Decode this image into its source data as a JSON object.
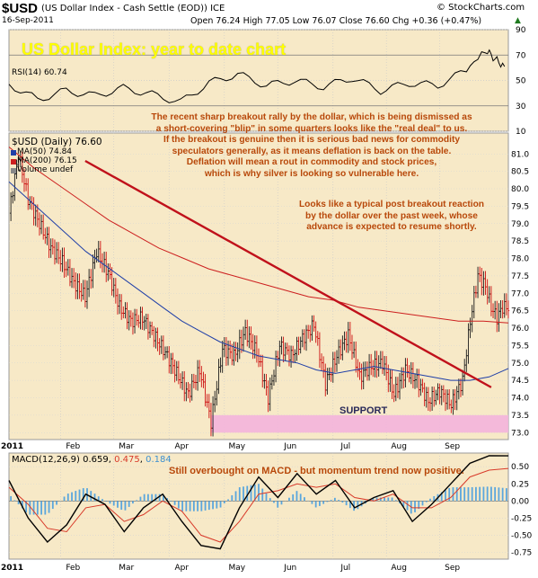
{
  "header": {
    "symbol": "$USD",
    "description": "(US Dollar Index - Cash Settle (EOD)) ICE",
    "site": "© StockCharts.com",
    "date": "16-Sep-2011",
    "quote": "Open 76.24 High 77.05 Low 76.07 Close 76.60 Chg +0.36 (+0.47%)",
    "up_arrow": "▲"
  },
  "title_banner": "US Dollar Index: year to date chart",
  "rsi_panel": {
    "label": "RSI(14) 60.74",
    "ticks": [
      "90",
      "70",
      "50",
      "30",
      "10"
    ]
  },
  "price_panel": {
    "label": "$USD (Daily) 76.60",
    "legend": [
      {
        "text": "MA(50) 74.84",
        "color": "#1f3fa8"
      },
      {
        "text": "MA(200) 76.15",
        "color": "#cc1f1f"
      },
      {
        "text": "Volume undef",
        "color": "#444444"
      }
    ],
    "support_label": "SUPPORT",
    "annotation_1": [
      "The recent sharp breakout rally by the dollar, which is being dismissed as",
      "a short-covering \"blip\" in some quarters looks like the \"real deal\" to us.",
      "If the breakout is genuine then it is serious bad news for commodity",
      "speculators generally, as it means deflation is back on the table.",
      "Deflation will mean a rout in commodity and stock prices,",
      "which is why silver is looking so vulnerable here."
    ],
    "annotation_2": [
      "Looks like a typical post breakout reaction",
      "by the dollar over the past week, whose",
      "advance is expected to resume shortly."
    ],
    "ticks": [
      "81.0",
      "80.5",
      "80.0",
      "79.5",
      "79.0",
      "78.5",
      "78.0",
      "77.5",
      "77.0",
      "76.5",
      "76.0",
      "75.5",
      "75.0",
      "74.5",
      "74.0",
      "73.5",
      "73.0"
    ]
  },
  "macd_panel": {
    "label_prefix": "MACD(12,26,9) 0.659, ",
    "label_signal": "0.475",
    "label_sep": ", ",
    "label_hist": "0.184",
    "note": "Still overbought on MACD - but momentum trend now positive.",
    "ticks": [
      "0.50",
      "0.25",
      "0.00",
      "-0.25",
      "-0.50",
      "-0.75"
    ]
  },
  "x_axis": {
    "year": "2011",
    "months": [
      "Feb",
      "Mar",
      "Apr",
      "May",
      "Jun",
      "Jul",
      "Aug",
      "Sep"
    ]
  },
  "colors": {
    "panel_bg": "#f7e9c7",
    "price_up": "#1a1a1a",
    "price_down": "#cc1010",
    "ma50": "#1f3fa8",
    "ma200": "#cc1f1f",
    "trendline": "#c0111b",
    "support_band": "#f3b4dc",
    "macd": "#000000",
    "signal": "#d83a2a",
    "histogram": "#5aa6dd",
    "annotation": "#b8480a",
    "banner": "#ffff00"
  },
  "chart_data": [
    {
      "type": "line",
      "title": "RSI(14) 60.74",
      "ylim": [
        10,
        90
      ],
      "series": [
        {
          "name": "RSI(14)",
          "x_days": [
            0,
            15,
            30,
            45,
            60,
            75,
            90,
            105,
            120,
            135,
            150,
            165,
            180,
            195,
            210,
            225,
            240,
            250,
            255,
            260
          ],
          "values": [
            47,
            35,
            42,
            38,
            44,
            39,
            33,
            48,
            55,
            46,
            50,
            45,
            52,
            42,
            48,
            46,
            58,
            74,
            67,
            61
          ]
        }
      ]
    },
    {
      "type": "line",
      "title": "$USD (Daily) 76.60",
      "ylim": [
        72.8,
        81.6
      ],
      "xlabel": "",
      "ylabel": "",
      "series": [
        {
          "name": "$USD close",
          "x_days": [
            0,
            5,
            10,
            16,
            22,
            28,
            34,
            40,
            46,
            52,
            58,
            64,
            70,
            76,
            82,
            88,
            94,
            100,
            106,
            112,
            118,
            124,
            130,
            136,
            142,
            148,
            154,
            160,
            166,
            172,
            178,
            184,
            190,
            196,
            202,
            208,
            214,
            220,
            226,
            232,
            238,
            242,
            246,
            250,
            253,
            256,
            259,
            262
          ],
          "values": [
            79.3,
            81.0,
            79.7,
            79.0,
            78.3,
            77.9,
            77.3,
            76.9,
            78.2,
            77.6,
            76.6,
            76.2,
            76.3,
            75.8,
            75.3,
            74.7,
            74.1,
            74.8,
            73.3,
            75.4,
            75.2,
            75.9,
            75.3,
            74.0,
            75.5,
            75.2,
            75.7,
            76.1,
            74.4,
            75.2,
            75.8,
            74.6,
            74.9,
            75.0,
            74.1,
            74.8,
            74.5,
            73.9,
            74.2,
            73.8,
            74.5,
            76.2,
            77.5,
            77.2,
            76.6,
            76.3,
            76.6,
            76.6
          ]
        },
        {
          "name": "MA(50) 74.84",
          "values": [
            80.2,
            79.7,
            79.2,
            78.7,
            78.2,
            77.8,
            77.4,
            77.0,
            76.6,
            76.2,
            75.9,
            75.6,
            75.4,
            75.2,
            75.1,
            75.0,
            74.8,
            74.7,
            74.8,
            74.9,
            74.8,
            74.7,
            74.6,
            74.5,
            74.5,
            74.6,
            74.84
          ]
        },
        {
          "name": "MA(200) 76.15",
          "values": [
            81.2,
            80.6,
            80.1,
            79.6,
            79.1,
            78.7,
            78.3,
            78.0,
            77.7,
            77.5,
            77.3,
            77.1,
            76.9,
            76.8,
            76.6,
            76.5,
            76.4,
            76.3,
            76.2,
            76.2,
            76.15
          ]
        },
        {
          "name": "Trendline",
          "x_days": [
            40,
            253
          ],
          "values": [
            80.8,
            74.3
          ]
        },
        {
          "name": "Support",
          "values": [
            73.0,
            73.5
          ]
        }
      ]
    },
    {
      "type": "line",
      "title": "MACD(12,26,9) 0.659, 0.475, 0.184",
      "ylim": [
        -0.85,
        0.7
      ],
      "series": [
        {
          "name": "MACD",
          "values": [
            0.3,
            -0.25,
            -0.6,
            -0.35,
            0.1,
            -0.05,
            -0.45,
            -0.1,
            0.1,
            -0.3,
            -0.65,
            -0.7,
            -0.1,
            0.35,
            0.05,
            0.4,
            0.1,
            0.3,
            -0.1,
            0.05,
            0.15,
            -0.3,
            -0.05,
            0.25,
            0.55,
            0.66,
            0.659
          ]
        },
        {
          "name": "Signal",
          "values": [
            0.2,
            -0.05,
            -0.4,
            -0.45,
            -0.1,
            -0.05,
            -0.3,
            -0.2,
            0.0,
            -0.15,
            -0.5,
            -0.6,
            -0.3,
            0.1,
            0.15,
            0.25,
            0.2,
            0.25,
            0.05,
            0.0,
            0.1,
            -0.1,
            -0.1,
            0.05,
            0.35,
            0.45,
            0.475
          ]
        }
      ]
    }
  ]
}
